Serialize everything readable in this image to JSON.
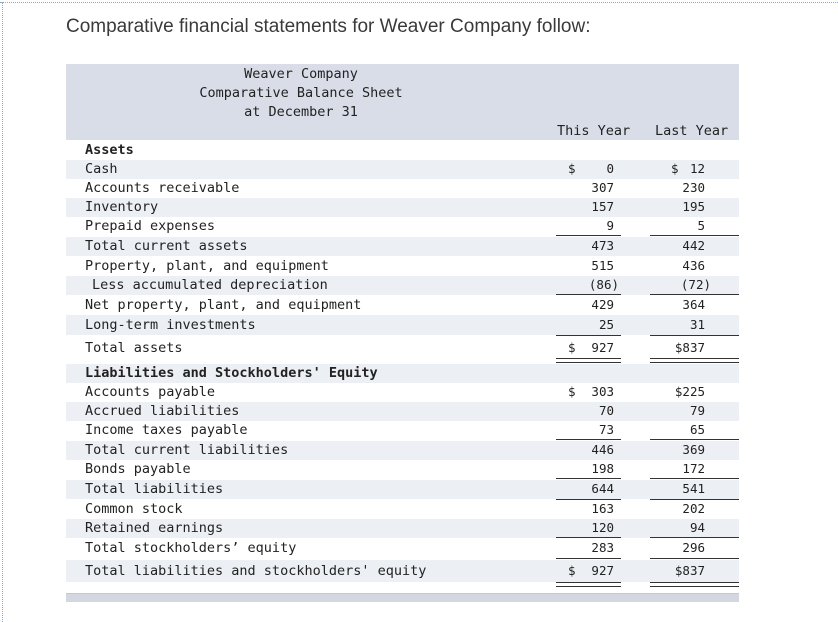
{
  "intro": "Comparative financial statements for Weaver Company follow:",
  "header": {
    "company": "Weaver Company",
    "statement": "Comparative Balance Sheet",
    "date": "at December 31",
    "col_this_year": "This Year",
    "col_last_year": "Last Year"
  },
  "rows": {
    "assets_heading": {
      "label": "Assets"
    },
    "cash": {
      "label": "Cash",
      "this_year": "0",
      "last_year": "12",
      "ty_dollar": "$",
      "ly_dollar": "$"
    },
    "accounts_receivable": {
      "label": "Accounts receivable",
      "this_year": "307",
      "last_year": "230"
    },
    "inventory": {
      "label": "Inventory",
      "this_year": "157",
      "last_year": "195"
    },
    "prepaid_expenses": {
      "label": "Prepaid expenses",
      "this_year": "9",
      "last_year": "5"
    },
    "total_current_assets": {
      "label": "Total current assets",
      "this_year": "473",
      "last_year": "442"
    },
    "ppe": {
      "label": "Property, plant, and equipment",
      "this_year": "515",
      "last_year": "436"
    },
    "accum_depreciation": {
      "label": "Less accumulated depreciation",
      "this_year": "(86)",
      "last_year": "(72)"
    },
    "net_ppe": {
      "label": "Net property, plant, and equipment",
      "this_year": "429",
      "last_year": "364"
    },
    "lt_investments": {
      "label": "Long-term investments",
      "this_year": "25",
      "last_year": "31"
    },
    "total_assets": {
      "label": "Total assets",
      "this_year": "927",
      "last_year": "$837",
      "ty_dollar": "$"
    },
    "liab_heading": {
      "label": "Liabilities and Stockholders' Equity"
    },
    "accounts_payable": {
      "label": "Accounts payable",
      "this_year": "303",
      "last_year": "$225",
      "ty_dollar": "$"
    },
    "accrued_liabilities": {
      "label": "Accrued liabilities",
      "this_year": "70",
      "last_year": "79"
    },
    "income_taxes_payable": {
      "label": "Income taxes payable",
      "this_year": "73",
      "last_year": "65"
    },
    "total_current_liabilities": {
      "label": "Total current liabilities",
      "this_year": "446",
      "last_year": "369"
    },
    "bonds_payable": {
      "label": "Bonds payable",
      "this_year": "198",
      "last_year": "172"
    },
    "total_liabilities": {
      "label": "Total liabilities",
      "this_year": "644",
      "last_year": "541"
    },
    "common_stock": {
      "label": "Common stock",
      "this_year": "163",
      "last_year": "202"
    },
    "retained_earnings": {
      "label": "Retained earnings",
      "this_year": "120",
      "last_year": "94"
    },
    "total_se": {
      "label": "Total stockholders’ equity",
      "this_year": "283",
      "last_year": "296"
    },
    "total_liab_se": {
      "label": "Total liabilities and stockholders' equity",
      "this_year": "927",
      "last_year": "$837",
      "ty_dollar": "$"
    }
  }
}
